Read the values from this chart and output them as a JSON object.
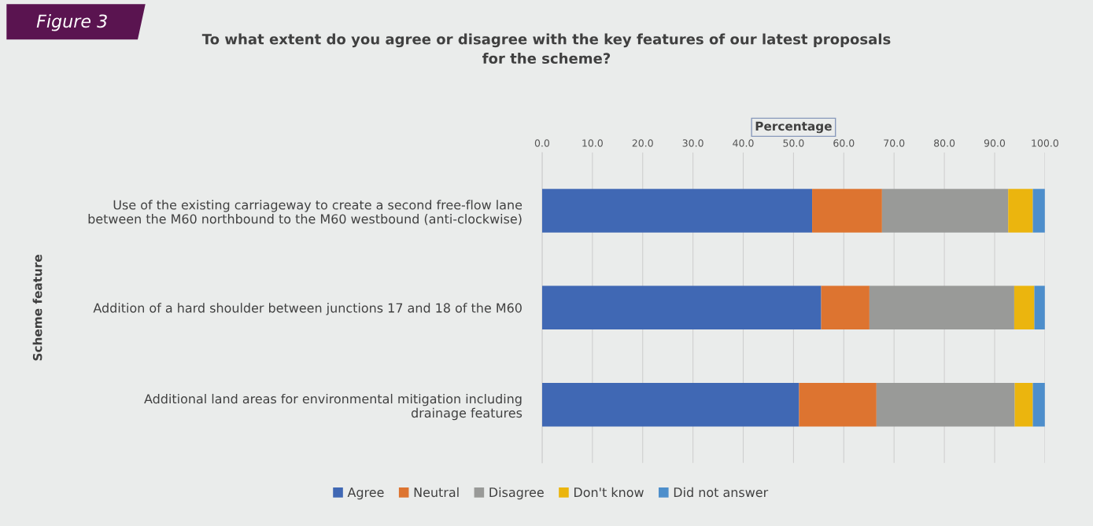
{
  "chart_data": {
    "type": "bar",
    "orientation": "horizontal",
    "stacked": true,
    "title": "To what extent do you agree or disagree with the key features of our latest proposals for the scheme?",
    "xlabel": "Percentage",
    "ylabel": "Scheme feature",
    "annotations": [
      "Figure 3"
    ],
    "categories": [
      "Use of the existing carriageway to create a second free-flow lane between the M60 northbound to the M60 westbound (anti-clockwise)",
      "Addition of a hard shoulder between junctions 17 and 18 of the M60",
      "Additional land areas for environmental mitigation including drainage features"
    ],
    "series": [
      {
        "name": "Agree",
        "color": "#4068b4",
        "values": [
          53.7,
          55.5,
          51.1
        ]
      },
      {
        "name": "Neutral",
        "color": "#dd7430",
        "values": [
          13.9,
          9.6,
          15.4
        ]
      },
      {
        "name": "Disagree",
        "color": "#999a98",
        "values": [
          25.1,
          28.8,
          27.5
        ]
      },
      {
        "name": "Don't know",
        "color": "#ebb50e",
        "values": [
          4.9,
          4.0,
          3.6
        ]
      },
      {
        "name": "Did not answer",
        "color": "#4d8ecb",
        "values": [
          2.4,
          2.1,
          2.4
        ]
      }
    ],
    "xlim": [
      0,
      100
    ],
    "xticks": [
      {
        "value": 0,
        "label": "0.0"
      },
      {
        "value": 10,
        "label": "10.0"
      },
      {
        "value": 20,
        "label": "20.0"
      },
      {
        "value": 30,
        "label": "30.0"
      },
      {
        "value": 40,
        "label": "40.0"
      },
      {
        "value": 50,
        "label": "50.0"
      },
      {
        "value": 60,
        "label": "60.0"
      },
      {
        "value": 70,
        "label": "70.0"
      },
      {
        "value": 80,
        "label": "80.0"
      },
      {
        "value": 90,
        "label": "90.0"
      },
      {
        "value": 100,
        "label": "100.0"
      }
    ],
    "grid": "x",
    "legend": "bottom"
  }
}
